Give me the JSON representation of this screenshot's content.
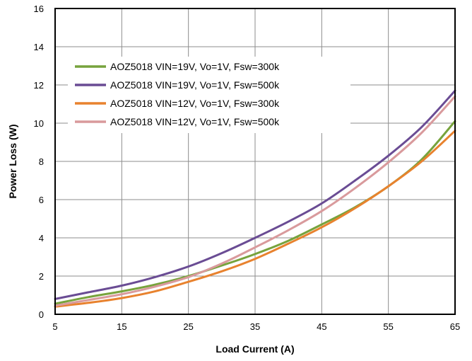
{
  "chart_data": {
    "type": "line",
    "xlabel": "Load Current (A)",
    "ylabel": "Power Loss (W)",
    "xlim": [
      5,
      65
    ],
    "ylim": [
      0,
      16
    ],
    "xticks": [
      5,
      15,
      25,
      35,
      45,
      55,
      65
    ],
    "yticks": [
      0,
      2,
      4,
      6,
      8,
      10,
      12,
      14,
      16
    ],
    "grid": true,
    "legend_position": "top-left",
    "series": [
      {
        "name": "AOZ5018 VIN=19V, Vo=1V, Fsw=300k",
        "color": "#77a33c",
        "x": [
          5,
          10,
          15,
          20,
          25,
          30,
          35,
          40,
          45,
          50,
          55,
          60,
          65
        ],
        "y": [
          0.55,
          0.9,
          1.2,
          1.55,
          2.0,
          2.55,
          3.15,
          3.85,
          4.7,
          5.6,
          6.7,
          8.1,
          10.1
        ]
      },
      {
        "name": "AOZ5018 VIN=19V, Vo=1V, Fsw=500k",
        "color": "#6a4c94",
        "x": [
          5,
          10,
          15,
          20,
          25,
          30,
          35,
          40,
          45,
          50,
          55,
          60,
          65
        ],
        "y": [
          0.8,
          1.15,
          1.5,
          1.95,
          2.5,
          3.2,
          4.0,
          4.85,
          5.8,
          7.0,
          8.3,
          9.8,
          11.7
        ]
      },
      {
        "name": "AOZ5018 VIN=12V, Vo=1V, Fsw=300k",
        "color": "#e8822e",
        "x": [
          5,
          10,
          15,
          20,
          25,
          30,
          35,
          40,
          45,
          50,
          55,
          60,
          65
        ],
        "y": [
          0.4,
          0.6,
          0.85,
          1.2,
          1.7,
          2.25,
          2.9,
          3.7,
          4.55,
          5.55,
          6.7,
          8.0,
          9.6
        ]
      },
      {
        "name": "AOZ5018 VIN=12V, Vo=1V, Fsw=500k",
        "color": "#d99a9c",
        "x": [
          5,
          10,
          15,
          20,
          25,
          30,
          35,
          40,
          45,
          50,
          55,
          60,
          65
        ],
        "y": [
          0.45,
          0.75,
          1.05,
          1.45,
          1.95,
          2.65,
          3.5,
          4.4,
          5.4,
          6.6,
          7.95,
          9.5,
          11.4
        ]
      }
    ]
  }
}
